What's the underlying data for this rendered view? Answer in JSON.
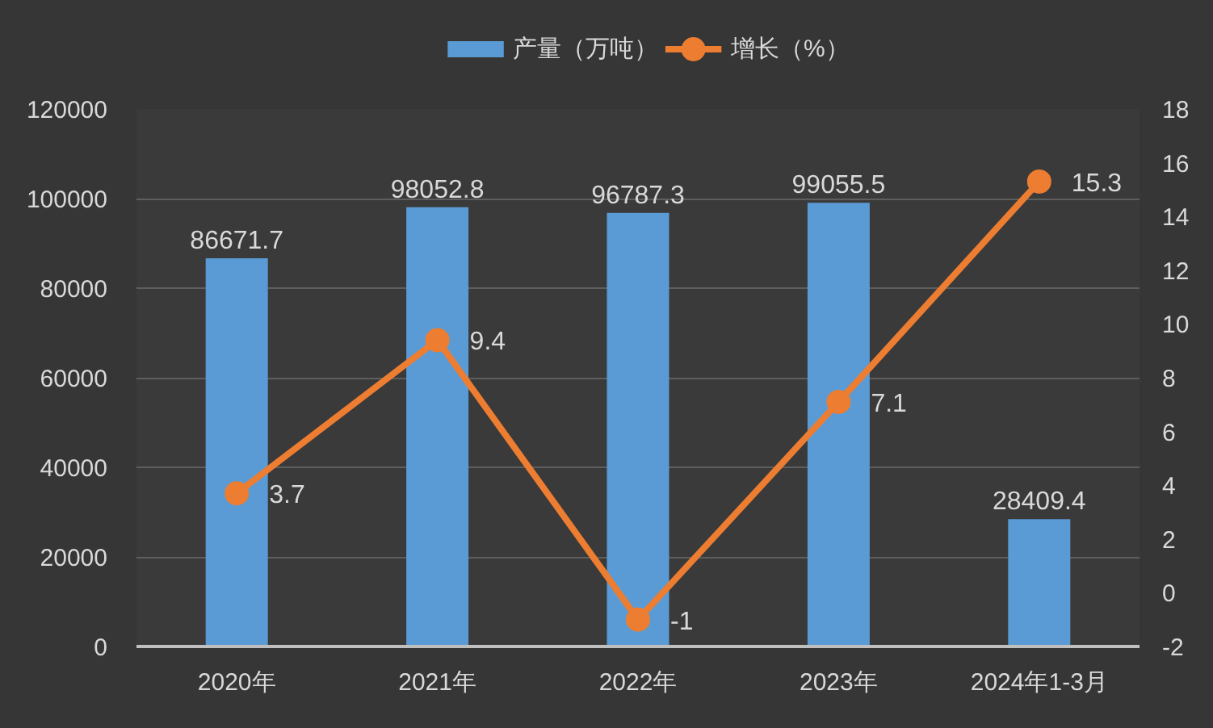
{
  "chart_data": {
    "type": "bar",
    "categories": [
      "2020年",
      "2021年",
      "2022年",
      "2023年",
      "2024年1-3月"
    ],
    "series": [
      {
        "name": "产量（万吨）",
        "color": "#5b9bd5",
        "values": [
          86671.7,
          98052.8,
          96787.3,
          99055.5,
          28409.4
        ]
      },
      {
        "name": "增长（%）",
        "type": "line",
        "axis": "y2",
        "color": "#ed7d31",
        "values": [
          3.7,
          9.4,
          -1,
          7.1,
          15.3
        ]
      }
    ],
    "ylim": [
      0,
      120000
    ],
    "yticks": [
      0,
      20000,
      40000,
      60000,
      80000,
      100000,
      120000
    ],
    "y2lim": [
      -2,
      18
    ],
    "y2ticks": [
      -2,
      0,
      2,
      4,
      6,
      8,
      10,
      12,
      14,
      16,
      18
    ],
    "data_labels": true,
    "legend": "top",
    "grid": "y",
    "marker": "circle"
  }
}
